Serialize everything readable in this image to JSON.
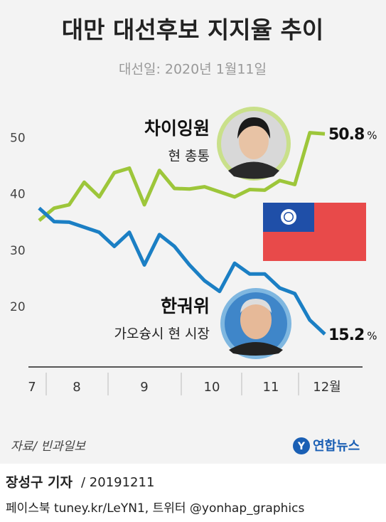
{
  "chart_data": {
    "type": "line",
    "title": "대만 대선후보 지지율 추이",
    "subtitle": "대선일: 2020년 1월11일",
    "months": [
      "7",
      "8",
      "9",
      "10",
      "11",
      "12월"
    ],
    "ylim": [
      10,
      55
    ],
    "yticks": [
      20,
      30,
      40,
      50
    ],
    "unit": "%",
    "series": [
      {
        "name": "차이잉원",
        "role": "현 총통",
        "color": "#9dc63a",
        "values": [
          35.4,
          37.6,
          38.2,
          42.2,
          39.6,
          43.9,
          44.7,
          38.2,
          44.3,
          41.1,
          41.0,
          41.4,
          40.5,
          39.6,
          40.9,
          40.8,
          42.5,
          41.8,
          51.0,
          50.8
        ]
      },
      {
        "name": "한궈위",
        "role": "가오슝시 현 시장",
        "color": "#1b7fc4",
        "values": [
          37.6,
          35.2,
          35.1,
          34.2,
          33.3,
          30.8,
          33.3,
          27.5,
          32.9,
          30.8,
          27.5,
          24.7,
          22.8,
          27.8,
          25.9,
          25.9,
          23.4,
          22.4,
          17.7,
          15.2
        ]
      }
    ],
    "source": "자료/ 빈과일보",
    "logo": "연합뉴스"
  },
  "footer": {
    "reporter": "장성구 기자",
    "date": "/ 20191211",
    "sns": "페이스북 tuney.kr/LeYN1, 트위터 @yonhap_graphics"
  }
}
